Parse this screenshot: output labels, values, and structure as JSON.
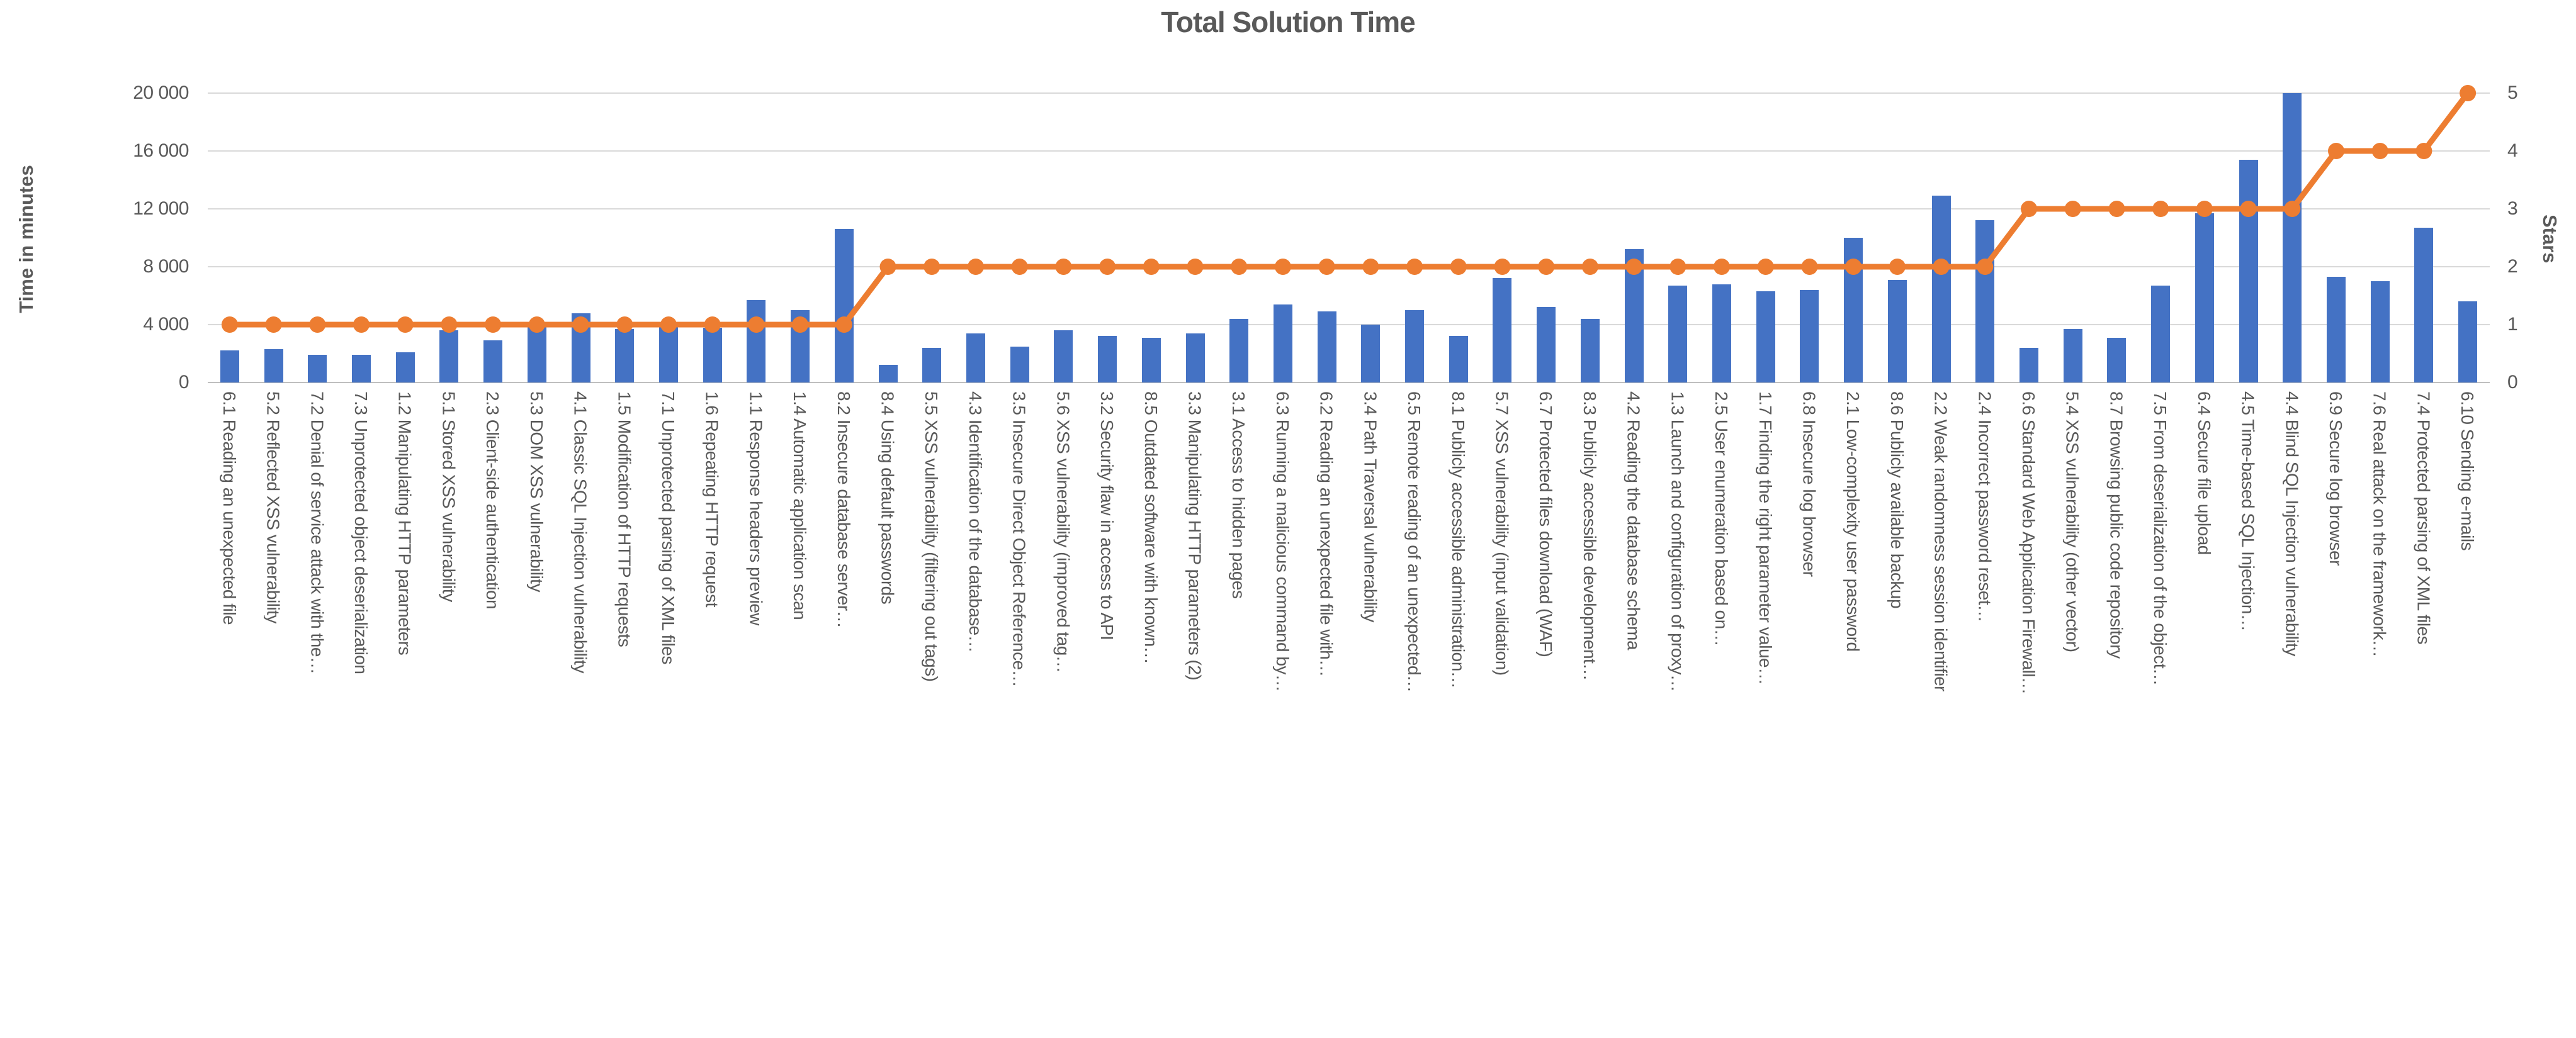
{
  "chart_data": {
    "type": "bar+line",
    "title": "Total Solution Time",
    "legend_position": "none",
    "grid": true,
    "colors": {
      "bar": "#4472c4",
      "line": "#ed7d31",
      "text": "#595959",
      "gridline": "#d9d9d9"
    },
    "y_left": {
      "title": "Time in minutes",
      "min": 0,
      "max": 20000,
      "ticks": [
        "20 000",
        "16 000",
        "12 000",
        "8 000",
        "4 000",
        "0"
      ]
    },
    "y_right": {
      "title": "Stars",
      "min": 0,
      "max": 5,
      "ticks": [
        "5",
        "4",
        "3",
        "2",
        "1",
        "0"
      ]
    },
    "categories": [
      "6.1 Reading an unexpected file",
      "5.2 Reflected XSS vulnerability",
      "7.2 Denial of service attack with the…",
      "7.3 Unprotected object deserialization",
      "1.2 Manipulating HTTP parameters",
      "5.1 Stored XSS vulnerability",
      "2.3 Client-side authentication",
      "5.3 DOM XSS vulnerability",
      "4.1 Classic SQL Injection vulnerability",
      "1.5 Modification of HTTP requests",
      "7.1 Unprotected parsing of XML files",
      "1.6 Repeating HTTP request",
      "1.1 Response headers preview",
      "1.4 Automatic application scan",
      "8.2 Insecure database server…",
      "8.4 Using default passwords",
      "5.5 XSS vulnerability (filtering out tags)",
      "4.3 Identification of the database…",
      "3.5 Insecure Direct Object Reference…",
      "5.6 XSS vulnerability (improved tag…",
      "3.2 Security flaw in access to API",
      "8.5 Outdated software with known…",
      "3.3 Manipulating HTTP parameters (2)",
      "3.1 Access to hidden pages",
      "6.3 Running a malicious command by…",
      "6.2 Reading an unexpected file with…",
      "3.4 Path Traversal vulnerability",
      "6.5 Remote reading of an unexpected…",
      "8.1 Publicly accessible administration…",
      "5.7 XSS vulnerability (input validation)",
      "6.7 Protected files download (WAF)",
      "8.3 Publicly accessible development…",
      "4.2 Reading the database schema",
      "1.3 Launch and configuration of proxy…",
      "2.5 User enumeration based on…",
      "1.7 Finding the right parameter value…",
      "6.8 Insecure log browser",
      "2.1 Low-complexity user password",
      "8.6 Publicly available backup",
      "2.2 Weak randomness session identifier",
      "2.4 Incorrect password reset…",
      "6.6 Standard Web Application Firewall…",
      "5.4 XSS vulnerability (other vector)",
      "8.7 Browsing public code repository",
      "7.5 From deserialization of the object…",
      "6.4 Secure file upload",
      "4.5 Time-based SQL Injection…",
      "4.4 Blind SQL Injection vulnerability",
      "6.9 Secure log browser",
      "7.6 Real attack on the framework…",
      "7.4 Protected parsing of XML files",
      "6.10 Sending e-mails"
    ],
    "series": [
      {
        "name": "Time in minutes",
        "type": "bar",
        "axis": "left",
        "values": [
          2200,
          2300,
          1900,
          1900,
          2100,
          3600,
          2900,
          3900,
          4800,
          3700,
          3900,
          3800,
          5700,
          5000,
          10600,
          1200,
          2400,
          3400,
          2500,
          3600,
          3200,
          3100,
          3400,
          4400,
          5400,
          4900,
          4000,
          5000,
          3200,
          7200,
          5200,
          4400,
          9200,
          6700,
          6800,
          6300,
          6400,
          10000,
          7100,
          12900,
          11200,
          2400,
          3700,
          3100,
          6700,
          11700,
          15400,
          20000,
          7300,
          7000,
          10700,
          5600
        ]
      },
      {
        "name": "Stars",
        "type": "line",
        "axis": "right",
        "values": [
          1,
          1,
          1,
          1,
          1,
          1,
          1,
          1,
          1,
          1,
          1,
          1,
          1,
          1,
          1,
          2,
          2,
          2,
          2,
          2,
          2,
          2,
          2,
          2,
          2,
          2,
          2,
          2,
          2,
          2,
          2,
          2,
          2,
          2,
          2,
          2,
          2,
          2,
          2,
          2,
          2,
          3,
          3,
          3,
          3,
          3,
          3,
          3,
          4,
          4,
          4,
          5
        ]
      }
    ]
  }
}
